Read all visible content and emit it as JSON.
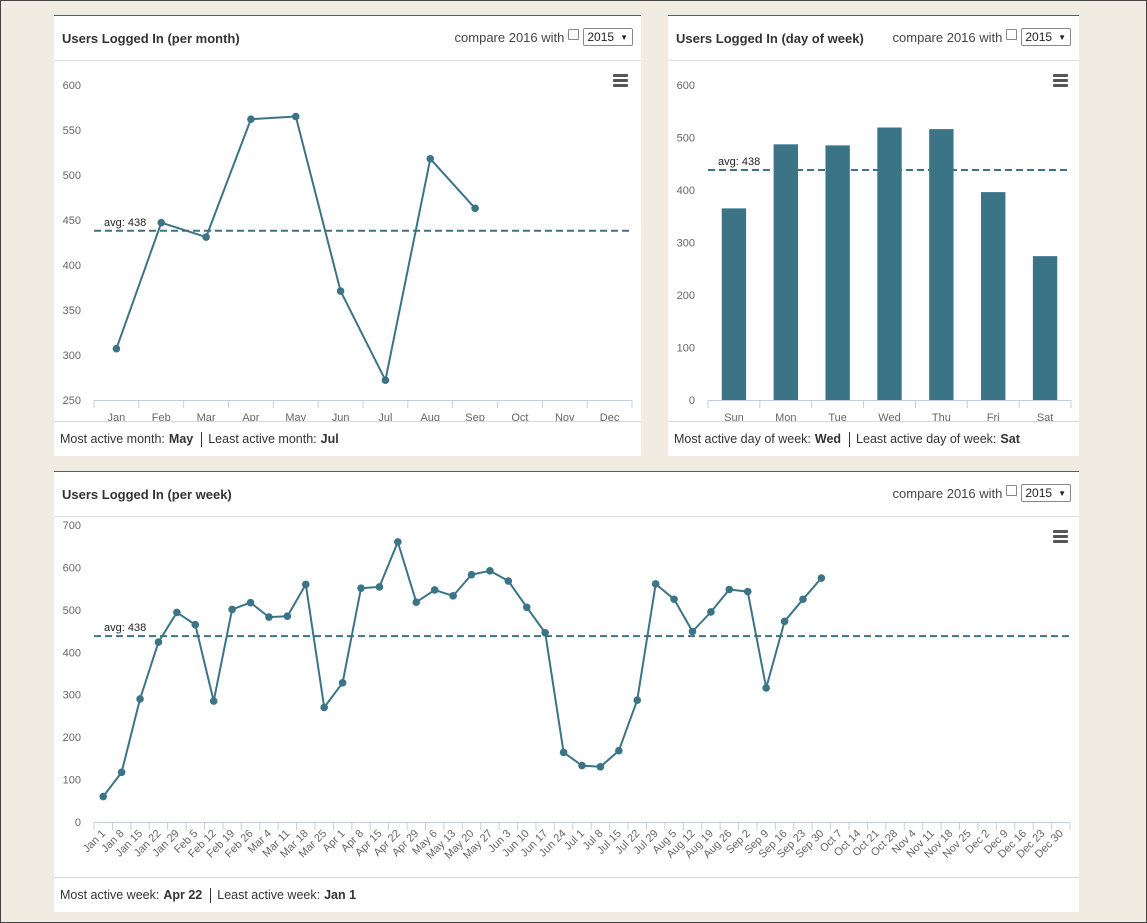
{
  "colors": {
    "series": "#3b7487",
    "avg": "#3b7487",
    "axis": "#c0d0e0",
    "grid": "#e6e6e6"
  },
  "panels": {
    "month": {
      "title": "Users Logged In (per month)",
      "compare_label": "compare 2016 with",
      "compare_year": "2015",
      "menu_icon": "hamburger-menu-icon",
      "avg_label": "avg: 438",
      "footer": {
        "most_label": "Most active month:",
        "most_value": "May",
        "least_label": "Least active month:",
        "least_value": "Jul"
      }
    },
    "dow": {
      "title": "Users Logged In (day of week)",
      "compare_label": "compare 2016 with",
      "compare_year": "2015",
      "menu_icon": "hamburger-menu-icon",
      "avg_label": "avg: 438",
      "footer": {
        "most_label": "Most active day of week:",
        "most_value": "Wed",
        "least_label": "Least active day of week:",
        "least_value": "Sat"
      }
    },
    "week": {
      "title": "Users Logged In (per week)",
      "compare_label": "compare 2016 with",
      "compare_year": "2015",
      "menu_icon": "hamburger-menu-icon",
      "avg_label": "avg: 438",
      "footer": {
        "most_label": "Most active week:",
        "most_value": "Apr 22",
        "least_label": "Least active week:",
        "least_value": "Jan 1"
      }
    }
  },
  "chart_data": [
    {
      "id": "month",
      "type": "line",
      "categories": [
        "Jan",
        "Feb",
        "Mar",
        "Apr",
        "May",
        "Jun",
        "Jul",
        "Aug",
        "Sep",
        "Oct",
        "Nov",
        "Dec"
      ],
      "values": [
        307,
        447,
        431,
        562,
        565,
        371,
        272,
        518,
        463,
        null,
        null,
        null
      ],
      "avg": 438,
      "ylim": [
        250,
        600
      ],
      "yticks": [
        250,
        300,
        350,
        400,
        450,
        500,
        550,
        600
      ]
    },
    {
      "id": "dow",
      "type": "bar",
      "categories": [
        "Sun",
        "Mon",
        "Tue",
        "Wed",
        "Thu",
        "Fri",
        "Sat"
      ],
      "values": [
        365,
        487,
        485,
        519,
        516,
        396,
        274
      ],
      "avg": 438,
      "ylim": [
        0,
        600
      ],
      "yticks": [
        0,
        100,
        200,
        300,
        400,
        500,
        600
      ]
    },
    {
      "id": "week",
      "type": "line",
      "categories": [
        "Jan 1",
        "Jan 8",
        "Jan 15",
        "Jan 22",
        "Jan 29",
        "Feb 5",
        "Feb 12",
        "Feb 19",
        "Feb 26",
        "Mar 4",
        "Mar 11",
        "Mar 18",
        "Mar 25",
        "Apr 1",
        "Apr 8",
        "Apr 15",
        "Apr 22",
        "Apr 29",
        "May 6",
        "May 13",
        "May 20",
        "May 27",
        "Jun 3",
        "Jun 10",
        "Jun 17",
        "Jun 24",
        "Jul 1",
        "Jul 8",
        "Jul 15",
        "Jul 22",
        "Jul 29",
        "Aug 5",
        "Aug 12",
        "Aug 19",
        "Aug 26",
        "Sep 2",
        "Sep 9",
        "Sep 16",
        "Sep 23",
        "Sep 30",
        "Oct 7",
        "Oct 14",
        "Oct 21",
        "Oct 28",
        "Nov 4",
        "Nov 11",
        "Nov 18",
        "Nov 25",
        "Dec 2",
        "Dec 9",
        "Dec 16",
        "Dec 23",
        "Dec 30"
      ],
      "values": [
        60,
        117,
        290,
        424,
        494,
        465,
        285,
        501,
        517,
        483,
        485,
        560,
        270,
        328,
        551,
        554,
        660,
        518,
        547,
        533,
        583,
        592,
        568,
        506,
        446,
        164,
        133,
        130,
        168,
        287,
        561,
        525,
        449,
        495,
        548,
        543,
        316,
        473,
        525,
        575,
        null,
        null,
        null,
        null,
        null,
        null,
        null,
        null,
        null,
        null,
        null,
        null,
        null
      ],
      "avg": 438,
      "ylim": [
        0,
        700
      ],
      "yticks": [
        0,
        100,
        200,
        300,
        400,
        500,
        600,
        700
      ]
    }
  ]
}
